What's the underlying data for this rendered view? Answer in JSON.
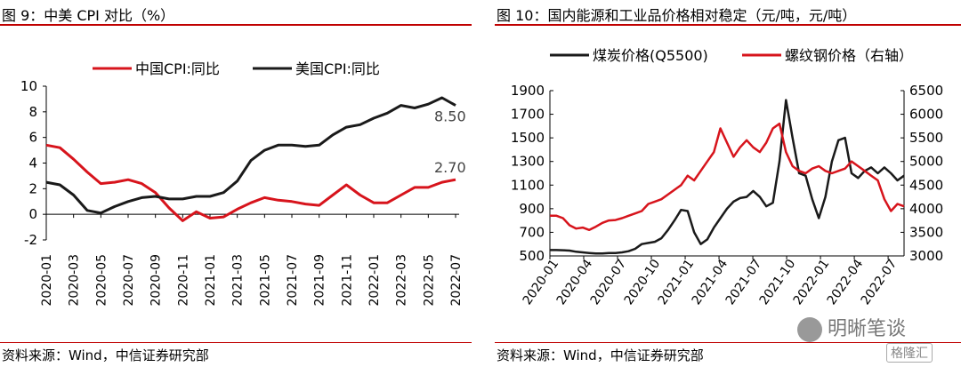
{
  "chart_data": [
    {
      "type": "line",
      "title": "图 9：中美 CPI 对比（%）",
      "source": "资料来源：Wind，中信证券研究部",
      "ylim": [
        -2,
        10
      ],
      "yticks": [
        "-2",
        "0",
        "2",
        "4",
        "6",
        "8",
        "10"
      ],
      "x_labels": [
        "2020-01",
        "2020-03",
        "2020-05",
        "2020-07",
        "2020-09",
        "2020-11",
        "2021-01",
        "2021-03",
        "2021-05",
        "2021-07",
        "2021-09",
        "2021-11",
        "2022-01",
        "2022-03",
        "2022-05",
        "2022-07"
      ],
      "series": [
        {
          "name": "中国CPI:同比",
          "color": "#d7141c",
          "values": [
            5.4,
            5.2,
            4.3,
            3.3,
            2.4,
            2.5,
            2.7,
            2.4,
            1.7,
            0.5,
            -0.5,
            0.2,
            -0.3,
            -0.2,
            0.4,
            0.9,
            1.3,
            1.1,
            1.0,
            0.8,
            0.7,
            1.5,
            2.3,
            1.5,
            0.9,
            0.9,
            1.5,
            2.1,
            2.1,
            2.5,
            2.7
          ],
          "end_label": "2.70"
        },
        {
          "name": "美国CPI:同比",
          "color": "#1a1a1a",
          "values": [
            2.5,
            2.3,
            1.5,
            0.3,
            0.1,
            0.6,
            1.0,
            1.3,
            1.4,
            1.2,
            1.2,
            1.4,
            1.4,
            1.7,
            2.6,
            4.2,
            5.0,
            5.4,
            5.4,
            5.3,
            5.4,
            6.2,
            6.8,
            7.0,
            7.5,
            7.9,
            8.5,
            8.3,
            8.6,
            9.1,
            8.5
          ],
          "end_label": "8.50"
        }
      ]
    },
    {
      "type": "line",
      "title": "图 10：国内能源和工业品价格相对稳定（元/吨，元/吨）",
      "source": "资料来源：Wind，中信证券研究部",
      "ylim_left": [
        500,
        1900
      ],
      "ylim_right": [
        3000,
        6500
      ],
      "yticks_left": [
        "500",
        "700",
        "900",
        "1100",
        "1300",
        "1500",
        "1700",
        "1900"
      ],
      "yticks_right": [
        "3000",
        "3500",
        "4000",
        "4500",
        "5000",
        "5500",
        "6000",
        "6500"
      ],
      "x_labels": [
        "2020-01",
        "2020-04",
        "2020-07",
        "2020-10",
        "2021-01",
        "2021-04",
        "2021-07",
        "2021-10",
        "2022-01",
        "2022-04",
        "2022-07"
      ],
      "series": [
        {
          "name": "煤炭价格(Q5500)",
          "color": "#1a1a1a",
          "axis": "left",
          "values": [
            550,
            550,
            548,
            545,
            535,
            530,
            525,
            520,
            520,
            525,
            525,
            530,
            540,
            560,
            600,
            610,
            620,
            650,
            720,
            800,
            890,
            880,
            700,
            600,
            640,
            740,
            820,
            900,
            960,
            990,
            1000,
            1050,
            1000,
            920,
            950,
            1300,
            1820,
            1500,
            1200,
            1180,
            980,
            820,
            1000,
            1300,
            1480,
            1500,
            1200,
            1160,
            1220,
            1250,
            1200,
            1250,
            1200,
            1140,
            1180
          ]
        },
        {
          "name": "螺纹钢价格（右轴）",
          "color": "#d7141c",
          "axis": "right",
          "values": [
            3850,
            3850,
            3800,
            3650,
            3580,
            3600,
            3550,
            3620,
            3700,
            3750,
            3760,
            3800,
            3850,
            3900,
            3950,
            4100,
            4150,
            4200,
            4300,
            4400,
            4500,
            4700,
            4600,
            4800,
            5000,
            5200,
            5700,
            5400,
            5100,
            5300,
            5450,
            5300,
            5200,
            5400,
            5700,
            5800,
            5200,
            4900,
            4800,
            4750,
            4850,
            4900,
            4800,
            4750,
            4800,
            4850,
            5000,
            4900,
            4800,
            4700,
            4600,
            4200,
            3950,
            4100,
            4050
          ]
        }
      ]
    }
  ],
  "left": {
    "title": "图 9：中美 CPI 对比（%）",
    "legend": [
      "中国CPI:同比",
      "美国CPI:同比"
    ],
    "source": "资料来源：Wind，中信证券研究部"
  },
  "right": {
    "title": "图 10：国内能源和工业品价格相对稳定（元/吨，元/吨）",
    "legend": [
      "煤炭价格(Q5500)",
      "螺纹钢价格（右轴）"
    ],
    "source": "资料来源：Wind，中信证券研究部",
    "watermark": "明晰笔谈",
    "badge": "格隆汇"
  }
}
